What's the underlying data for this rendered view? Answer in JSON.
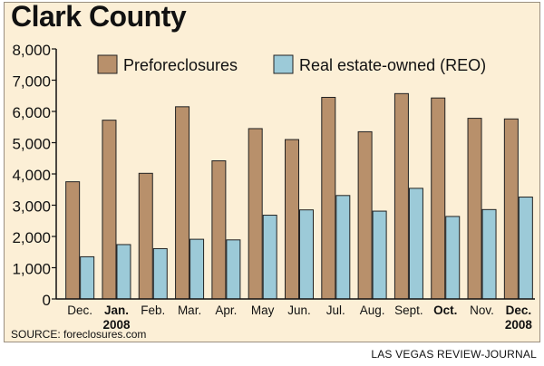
{
  "title": "Clark County",
  "source": "SOURCE: foreclosures.com",
  "credit": "LAS VEGAS REVIEW-JOURNAL",
  "colors": {
    "preforeclosures": "#b8906b",
    "reo": "#9ccad8",
    "background": "#fcefd6",
    "axis": "#111111"
  },
  "chart_data": {
    "type": "bar",
    "categories": [
      "Dec.",
      "Jan.\n2008",
      "Feb.",
      "Mar.",
      "Apr.",
      "May",
      "Jun.",
      "Jul.",
      "Aug.",
      "Sept.",
      "Oct.",
      "Nov.",
      "Dec.\n2008"
    ],
    "bold_categories": [
      "Jan.\n2008",
      "Oct.",
      "Dec.\n2008"
    ],
    "series": [
      {
        "name": "Preforeclosures",
        "values": [
          3750,
          5720,
          4020,
          6150,
          4420,
          5450,
          5100,
          6450,
          5350,
          6570,
          6430,
          5780,
          5760
        ]
      },
      {
        "name": "Real estate-owned (REO)",
        "values": [
          1350,
          1740,
          1610,
          1910,
          1890,
          2680,
          2850,
          3310,
          2810,
          3540,
          2640,
          2860,
          3260
        ]
      }
    ],
    "yticks": [
      "0",
      "1,000",
      "2,000",
      "3,000",
      "4,000",
      "5,000",
      "6,000",
      "7,000",
      "8,000"
    ],
    "ylim": [
      0,
      8000
    ],
    "legend_position": "top",
    "grid": false
  }
}
